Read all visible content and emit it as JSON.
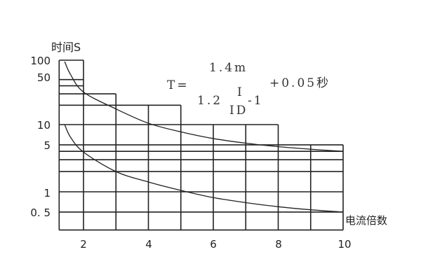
{
  "chart_data": {
    "type": "line",
    "ylabel": "时间S",
    "xlabel": "电流倍数",
    "y_scale": "log",
    "xlim": [
      1.25,
      10
    ],
    "ylim": [
      0.27,
      100
    ],
    "x_ticks": [
      "2",
      "4",
      "6",
      "8",
      "10"
    ],
    "y_ticks": [
      "100",
      "50",
      "10",
      "5",
      "1",
      "0. 5"
    ],
    "grid": "stepped",
    "horizontal_grid": [
      {
        "y": 100,
        "x_to": 2
      },
      {
        "y": 50,
        "x_to": 2
      },
      {
        "y": 40,
        "x_to": 2
      },
      {
        "y": 30,
        "x_to": 3
      },
      {
        "y": 20,
        "x_to": 5
      },
      {
        "y": 10,
        "x_to": 8
      },
      {
        "y": 5,
        "x_to": 10
      },
      {
        "y": 4,
        "x_to": 10
      },
      {
        "y": 3,
        "x_to": 10
      },
      {
        "y": 2,
        "x_to": 10
      },
      {
        "y": 1,
        "x_to": 10
      },
      {
        "y": 0.5,
        "x_to": 10
      },
      {
        "y": 0.27,
        "x_to": 10
      }
    ],
    "vertical_grid": [
      {
        "x": 1.25,
        "y_to": 100
      },
      {
        "x": 2,
        "y_to": 100
      },
      {
        "x": 3,
        "y_to": 30
      },
      {
        "x": 4,
        "y_to": 20
      },
      {
        "x": 5,
        "y_to": 20
      },
      {
        "x": 6,
        "y_to": 10
      },
      {
        "x": 7,
        "y_to": 10
      },
      {
        "x": 8,
        "y_to": 10
      },
      {
        "x": 9,
        "y_to": 5
      },
      {
        "x": 10,
        "y_to": 5
      }
    ],
    "series": [
      {
        "x": [
          1.42,
          1.6,
          2,
          3,
          4,
          5,
          6,
          7,
          8,
          9,
          10
        ],
        "y": [
          95,
          60,
          32,
          17.5,
          10.5,
          7.8,
          6.2,
          5.3,
          4.7,
          4.3,
          4.0
        ]
      },
      {
        "x": [
          1.42,
          1.6,
          2,
          3,
          4,
          5,
          6,
          7,
          8,
          9,
          10
        ],
        "y": [
          10,
          6.5,
          3.9,
          2.0,
          1.4,
          1.05,
          0.82,
          0.69,
          0.6,
          0.54,
          0.5
        ]
      }
    ],
    "annotation": {
      "lhs": "T=",
      "numerator": "1.4m",
      "den_coef": "1.2",
      "frac_num": "I",
      "frac_den": "ID",
      "den_minus": "-1",
      "suffix": "+0.05秒"
    }
  }
}
